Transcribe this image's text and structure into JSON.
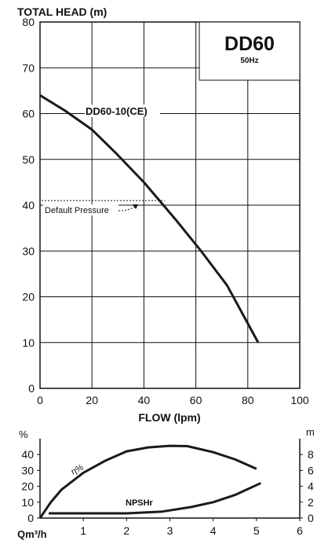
{
  "chart_data": [
    {
      "type": "line",
      "title": "TOTAL HEAD (m)",
      "xlabel": "FLOW (lpm)",
      "ylabel": "TOTAL HEAD (m)",
      "xlim": [
        0,
        100
      ],
      "ylim": [
        0,
        80
      ],
      "x_ticks": [
        0,
        20,
        40,
        60,
        80,
        100
      ],
      "y_ticks": [
        0,
        10,
        20,
        30,
        40,
        50,
        60,
        70,
        80
      ],
      "grid": true,
      "model": "DD60",
      "frequency": "50Hz",
      "series": [
        {
          "name": "DD60-10(CE)",
          "x": [
            0,
            10,
            20,
            29,
            40,
            52,
            62,
            72,
            84
          ],
          "y": [
            64,
            60.5,
            56.5,
            51.5,
            45,
            37,
            30,
            22.5,
            10
          ]
        }
      ],
      "reference_line": {
        "y": 41,
        "label": "Default Pressure",
        "x_end": 48
      }
    },
    {
      "type": "line",
      "x_label_prefix": "Qm³/h",
      "xlim": [
        0,
        6
      ],
      "x_ticks": [
        1,
        2,
        3,
        4,
        5,
        6
      ],
      "y_left_unit": "%",
      "y_left_lim": [
        0,
        50
      ],
      "y_left_ticks": [
        0,
        10,
        20,
        30,
        40
      ],
      "y_right_unit": "m",
      "y_right_lim": [
        0,
        10
      ],
      "y_right_ticks": [
        0,
        2,
        4,
        6,
        8
      ],
      "grid": false,
      "series": [
        {
          "name": "η%",
          "axis": "left",
          "x": [
            0,
            0.25,
            0.5,
            1,
            1.5,
            2,
            2.5,
            3,
            3.4,
            4,
            4.5,
            5
          ],
          "y": [
            0,
            10,
            18,
            28.5,
            36,
            42,
            44.5,
            45.5,
            45.3,
            41.5,
            37,
            31
          ]
        },
        {
          "name": "NPSHr",
          "axis": "right",
          "x": [
            0.2,
            1,
            2,
            2.8,
            3.5,
            4,
            4.5,
            5.1
          ],
          "y": [
            0.6,
            0.6,
            0.6,
            0.8,
            1.4,
            2.0,
            2.9,
            4.4
          ]
        }
      ]
    }
  ]
}
